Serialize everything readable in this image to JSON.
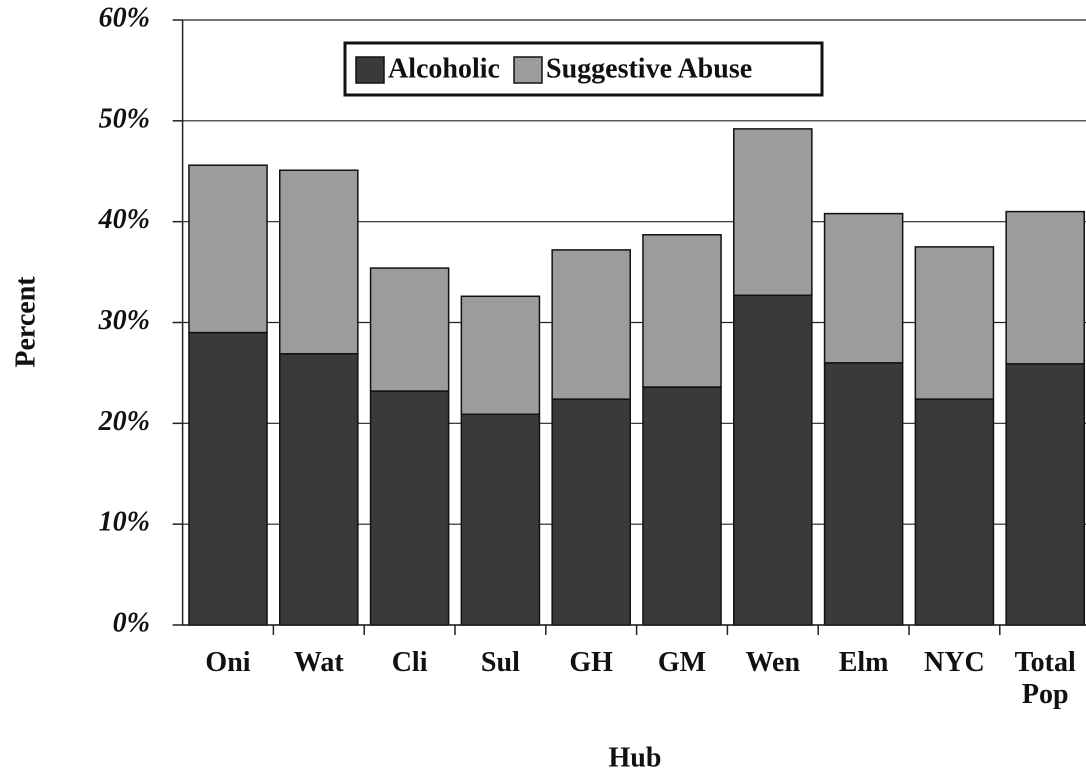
{
  "chart_data": {
    "type": "bar",
    "stacked": true,
    "x_label": "Hub",
    "y_label": "Percent",
    "categories": [
      "Oni",
      "Wat",
      "Cli",
      "Sul",
      "GH",
      "GM",
      "Wen",
      "Elm",
      "NYC",
      "Total Pop"
    ],
    "series": [
      {
        "name": "Alcoholic",
        "color": "#3a3a3a",
        "values": [
          29.0,
          26.9,
          23.2,
          20.9,
          22.4,
          23.6,
          32.7,
          26.0,
          22.4,
          25.9
        ]
      },
      {
        "name": "Suggestive Abuse",
        "color": "#9c9c9c",
        "values": [
          16.6,
          18.2,
          12.2,
          11.7,
          14.8,
          15.1,
          16.5,
          14.8,
          15.1,
          15.1
        ]
      }
    ],
    "ylim": [
      0,
      60
    ],
    "yticks": [
      {
        "value": 0,
        "label": "0%"
      },
      {
        "value": 10,
        "label": "10%"
      },
      {
        "value": 20,
        "label": "20%"
      },
      {
        "value": 30,
        "label": "30%"
      },
      {
        "value": 40,
        "label": "40%"
      },
      {
        "value": 50,
        "label": "50%"
      },
      {
        "value": 60,
        "label": "60%"
      }
    ],
    "grid": true
  }
}
